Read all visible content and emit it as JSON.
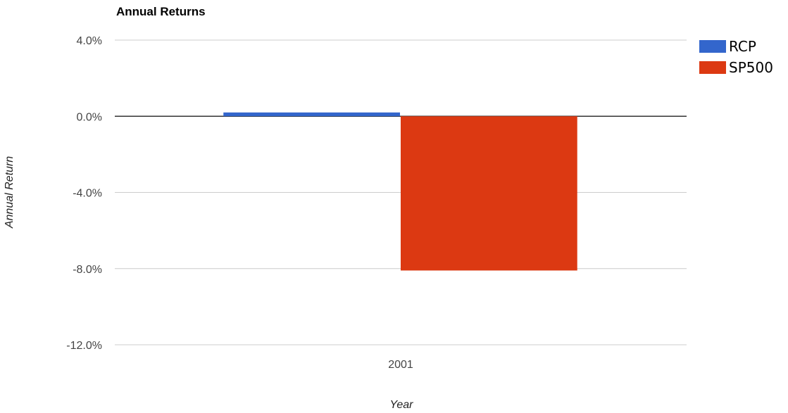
{
  "chart_data": {
    "type": "bar",
    "title": "Annual Returns",
    "xlabel": "Year",
    "ylabel": "Annual Return",
    "categories": [
      "2001"
    ],
    "series": [
      {
        "name": "RCP",
        "values": [
          0.2
        ],
        "color": "#3366cc"
      },
      {
        "name": "SP500",
        "values": [
          -8.1
        ],
        "color": "#dc3912"
      }
    ],
    "ylim": [
      -12.0,
      4.0
    ],
    "yticks": [
      4.0,
      0.0,
      -4.0,
      -8.0,
      -12.0
    ],
    "ytick_labels": [
      "4.0%",
      "0.0%",
      "-4.0%",
      "-8.0%",
      "-12.0%"
    ],
    "grid": true,
    "legend_position": "right"
  }
}
